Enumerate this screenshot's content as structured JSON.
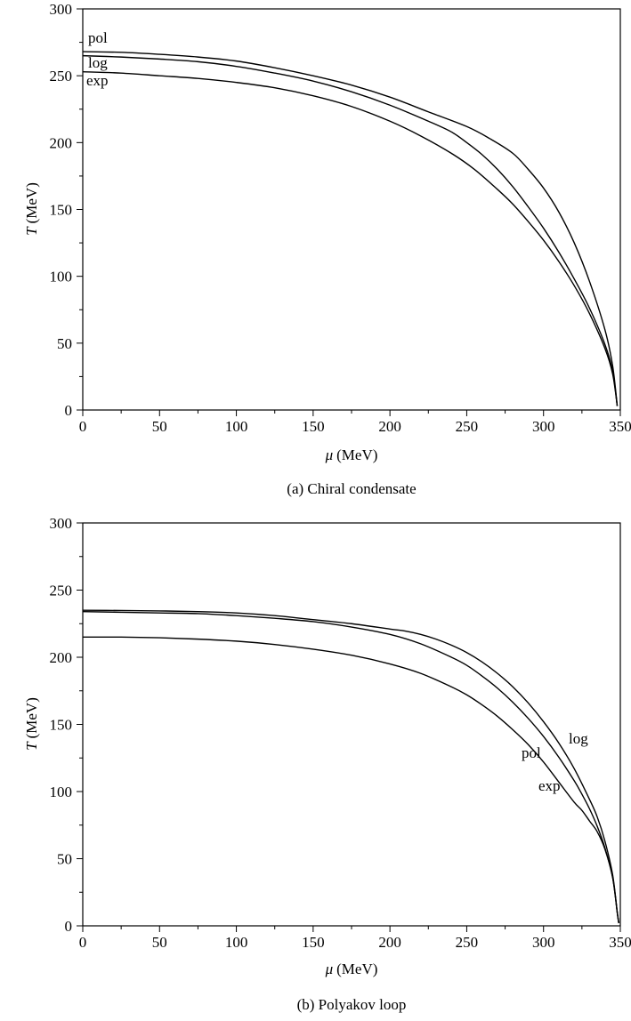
{
  "chart_data": [
    {
      "type": "line",
      "caption": "(a) Chiral condensate",
      "xlabel": {
        "symbol": "μ",
        "unit": "(MeV)"
      },
      "ylabel": {
        "symbol": "T",
        "unit": "(MeV)"
      },
      "xlim": [
        0,
        350
      ],
      "ylim": [
        0,
        300
      ],
      "xticks": [
        0,
        50,
        100,
        150,
        200,
        250,
        300,
        350
      ],
      "yticks": [
        0,
        50,
        100,
        150,
        200,
        250,
        300
      ],
      "grid": false,
      "series": [
        {
          "name": "pol",
          "x": [
            0,
            25,
            50,
            75,
            100,
            125,
            150,
            175,
            200,
            225,
            250,
            265,
            280,
            290,
            300,
            310,
            320,
            330,
            340,
            345,
            348
          ],
          "y": [
            268,
            267.5,
            266,
            264,
            261,
            256,
            250,
            243,
            234,
            223,
            212,
            203,
            192,
            180,
            166,
            148,
            125,
            96,
            60,
            33,
            3
          ]
        },
        {
          "name": "log",
          "x": [
            0,
            25,
            50,
            75,
            100,
            125,
            150,
            175,
            200,
            225,
            240,
            250,
            260,
            270,
            280,
            290,
            300,
            310,
            320,
            330,
            340,
            345,
            348
          ],
          "y": [
            265,
            264,
            262.5,
            260.5,
            257,
            252,
            246,
            238,
            228,
            216,
            208,
            200,
            191,
            180,
            167,
            152,
            136,
            118,
            98,
            76,
            49,
            29,
            3
          ]
        },
        {
          "name": "exp",
          "x": [
            0,
            25,
            50,
            75,
            100,
            125,
            150,
            175,
            200,
            220,
            240,
            255,
            270,
            280,
            290,
            300,
            310,
            320,
            330,
            340,
            345,
            348
          ],
          "y": [
            253,
            252,
            250,
            248,
            245,
            241,
            235,
            227,
            216,
            205,
            192,
            180,
            165,
            154,
            141,
            127,
            111,
            93,
            72,
            46,
            27,
            3
          ]
        }
      ]
    },
    {
      "type": "line",
      "caption": "(b) Polyakov loop",
      "xlabel": {
        "symbol": "μ",
        "unit": "(MeV)"
      },
      "ylabel": {
        "symbol": "T",
        "unit": "(MeV)"
      },
      "xlim": [
        0,
        350
      ],
      "ylim": [
        0,
        300
      ],
      "xticks": [
        0,
        50,
        100,
        150,
        200,
        250,
        300,
        350
      ],
      "yticks": [
        0,
        50,
        100,
        150,
        200,
        250,
        300
      ],
      "grid": false,
      "series": [
        {
          "name": "log",
          "x": [
            0,
            25,
            50,
            75,
            100,
            125,
            150,
            175,
            200,
            210,
            220,
            230,
            240,
            250,
            260,
            270,
            280,
            290,
            300,
            310,
            320,
            330,
            335,
            340,
            345,
            348,
            349
          ],
          "y": [
            235,
            234.8,
            234.5,
            234,
            233,
            231,
            228,
            225,
            221,
            219.5,
            217,
            213.5,
            209,
            203.5,
            196.5,
            188,
            178,
            166,
            152,
            136,
            117,
            94,
            81,
            63,
            38,
            10,
            2
          ]
        },
        {
          "name": "pol",
          "x": [
            0,
            25,
            50,
            75,
            100,
            125,
            150,
            175,
            200,
            220,
            240,
            250,
            260,
            270,
            280,
            290,
            300,
            310,
            320,
            325,
            330,
            335,
            340,
            345,
            348,
            349
          ],
          "y": [
            234,
            233.5,
            233,
            232.5,
            231,
            229,
            226.5,
            222.5,
            217,
            210,
            200,
            194,
            186,
            177,
            166.5,
            154.5,
            141,
            125.5,
            108,
            98,
            87,
            74,
            58,
            36,
            10,
            2
          ]
        },
        {
          "name": "exp",
          "x": [
            0,
            25,
            50,
            75,
            100,
            125,
            150,
            175,
            200,
            220,
            240,
            250,
            260,
            270,
            280,
            290,
            300,
            310,
            320,
            325,
            330,
            335,
            340,
            345,
            348,
            349
          ],
          "y": [
            215,
            215,
            214.5,
            213.5,
            212,
            209.5,
            206,
            201.5,
            195,
            188,
            178,
            172,
            164.5,
            156,
            146,
            135,
            122,
            107,
            92,
            86,
            78,
            70,
            57,
            36,
            10,
            2
          ]
        }
      ]
    }
  ]
}
